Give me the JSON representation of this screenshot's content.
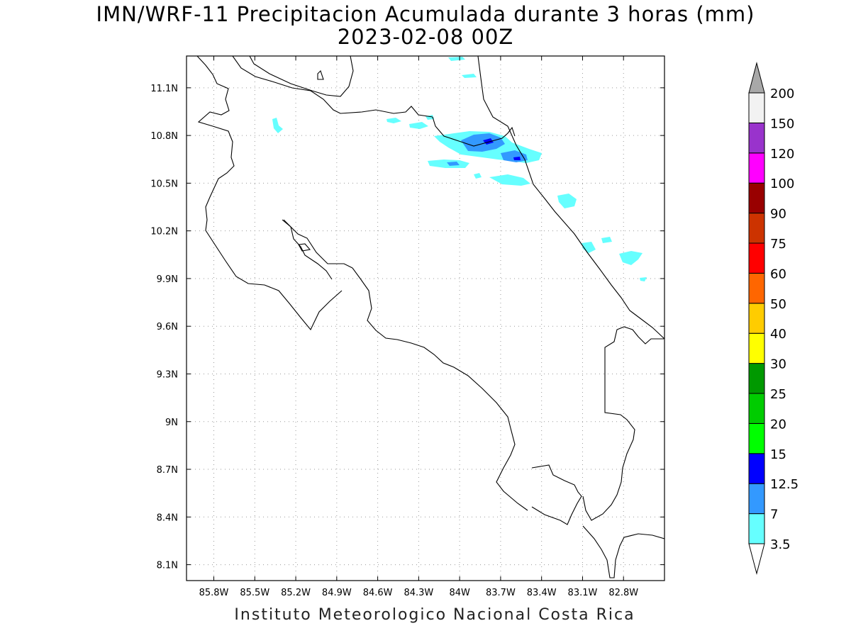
{
  "title": {
    "line1": "IMN/WRF-11 Precipitacion Acumulada durante 3 horas (mm)",
    "line2": "2023-02-08 00Z"
  },
  "footer": "Instituto Meteorologico Nacional Costa Rica",
  "map": {
    "lon_range": [
      -86.0,
      -82.5
    ],
    "lat_range": [
      8.0,
      11.3
    ],
    "x_ticks": [
      {
        "value": -85.8,
        "label": "85.8W"
      },
      {
        "value": -85.5,
        "label": "85.5W"
      },
      {
        "value": -85.2,
        "label": "85.2W"
      },
      {
        "value": -84.9,
        "label": "84.9W"
      },
      {
        "value": -84.6,
        "label": "84.6W"
      },
      {
        "value": -84.3,
        "label": "84.3W"
      },
      {
        "value": -84.0,
        "label": "84W"
      },
      {
        "value": -83.7,
        "label": "83.7W"
      },
      {
        "value": -83.4,
        "label": "83.4W"
      },
      {
        "value": -83.1,
        "label": "83.1W"
      },
      {
        "value": -82.8,
        "label": "82.8W"
      }
    ],
    "y_ticks": [
      {
        "value": 8.1,
        "label": "8.1N"
      },
      {
        "value": 8.4,
        "label": "8.4N"
      },
      {
        "value": 8.7,
        "label": "8.7N"
      },
      {
        "value": 9.0,
        "label": "9N"
      },
      {
        "value": 9.3,
        "label": "9.3N"
      },
      {
        "value": 9.6,
        "label": "9.6N"
      },
      {
        "value": 9.9,
        "label": "9.9N"
      },
      {
        "value": 10.2,
        "label": "10.2N"
      },
      {
        "value": 10.5,
        "label": "10.5N"
      },
      {
        "value": 10.8,
        "label": "10.8N"
      },
      {
        "value": 11.1,
        "label": "11.1N"
      }
    ],
    "grid": "dotted"
  },
  "colorbar": {
    "levels": [
      "3.5",
      "7",
      "12.5",
      "15",
      "20",
      "25",
      "30",
      "40",
      "50",
      "60",
      "75",
      "90",
      "100",
      "120",
      "150",
      "200"
    ],
    "colors": [
      "#66ffff",
      "#3399ff",
      "#0000ff",
      "#00ff00",
      "#00cc00",
      "#009900",
      "#ffff00",
      "#ffcc00",
      "#ff6600",
      "#ff0000",
      "#cc3300",
      "#990000",
      "#ff00ff",
      "#9933cc",
      "#f2f2f2"
    ],
    "top_arrow_color": "#a8a8a8",
    "bottom_arrow_color": "#ffffff"
  }
}
